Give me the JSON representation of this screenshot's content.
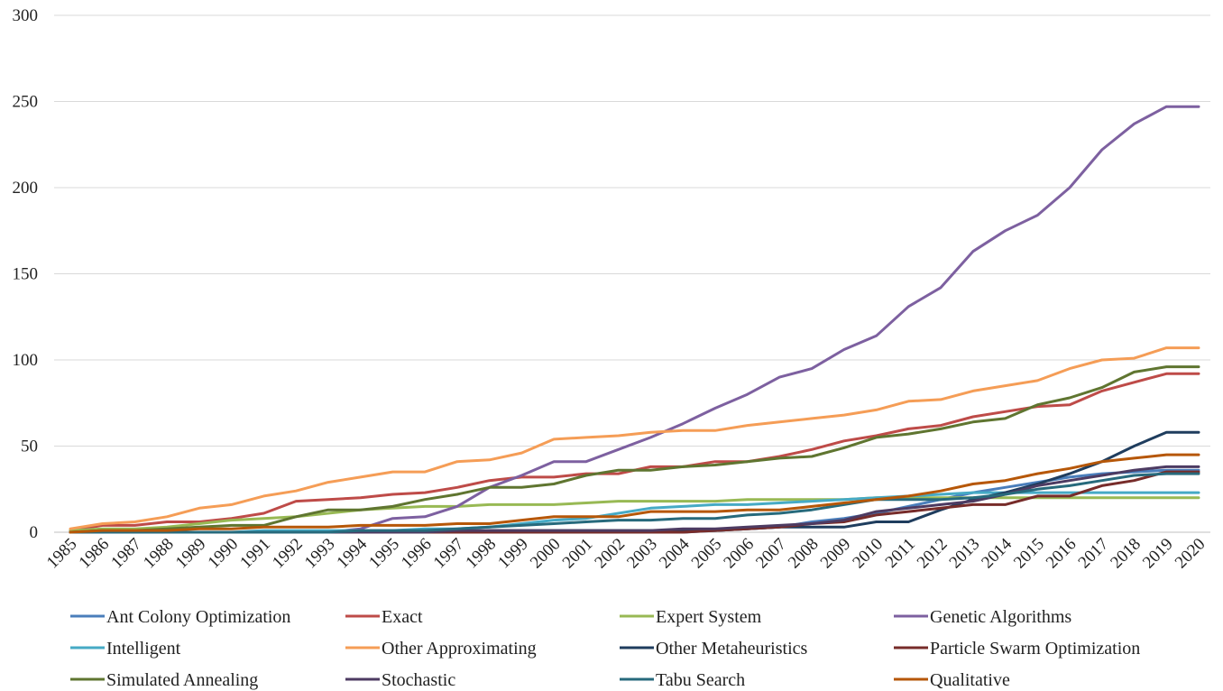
{
  "chart_data": {
    "type": "line",
    "title": "",
    "xlabel": "",
    "ylabel": "",
    "ylim": [
      0,
      300
    ],
    "yticks": [
      0,
      50,
      100,
      150,
      200,
      250,
      300
    ],
    "grid": true,
    "legend_position": "bottom",
    "x": [
      "1985",
      "1986",
      "1987",
      "1988",
      "1989",
      "1990",
      "1991",
      "1992",
      "1993",
      "1994",
      "1995",
      "1996",
      "1997",
      "1998",
      "1999",
      "2000",
      "2001",
      "2002",
      "2003",
      "2004",
      "2005",
      "2006",
      "2007",
      "2008",
      "2009",
      "2010",
      "2011",
      "2012",
      "2013",
      "2014",
      "2015",
      "2016",
      "2017",
      "2018",
      "2019",
      "2020"
    ],
    "series": [
      {
        "name": "Ant Colony Optimization",
        "color": "#4a7ebb",
        "values": [
          0,
          0,
          0,
          0,
          0,
          0,
          0,
          0,
          0,
          0,
          0,
          0,
          0,
          0,
          0,
          0,
          0,
          0,
          0,
          0,
          1,
          2,
          3,
          6,
          8,
          11,
          15,
          19,
          23,
          26,
          29,
          32,
          34,
          35,
          36,
          36
        ]
      },
      {
        "name": "Exact",
        "color": "#be4b48",
        "values": [
          1,
          4,
          4,
          6,
          6,
          8,
          11,
          18,
          19,
          20,
          22,
          23,
          26,
          30,
          32,
          32,
          34,
          34,
          38,
          38,
          41,
          41,
          44,
          48,
          53,
          56,
          60,
          62,
          67,
          70,
          73,
          74,
          82,
          87,
          92,
          92
        ]
      },
      {
        "name": "Expert System",
        "color": "#98b954",
        "values": [
          1,
          2,
          2,
          3,
          5,
          7,
          8,
          9,
          11,
          13,
          14,
          15,
          15,
          16,
          16,
          16,
          17,
          18,
          18,
          18,
          18,
          19,
          19,
          19,
          19,
          20,
          20,
          20,
          20,
          20,
          20,
          20,
          20,
          20,
          20,
          20
        ]
      },
      {
        "name": "Genetic Algorithms",
        "color": "#7d60a0",
        "values": [
          0,
          0,
          0,
          0,
          0,
          0,
          0,
          0,
          0,
          2,
          8,
          9,
          15,
          26,
          33,
          41,
          41,
          48,
          55,
          63,
          72,
          80,
          90,
          95,
          106,
          114,
          131,
          142,
          163,
          175,
          184,
          200,
          222,
          237,
          247,
          247
        ]
      },
      {
        "name": "Intelligent",
        "color": "#46aac5",
        "values": [
          0,
          0,
          0,
          0,
          0,
          0,
          1,
          1,
          1,
          1,
          1,
          2,
          2,
          3,
          5,
          7,
          8,
          11,
          14,
          15,
          16,
          16,
          17,
          18,
          19,
          20,
          21,
          22,
          23,
          23,
          23,
          23,
          23,
          23,
          23,
          23
        ]
      },
      {
        "name": "Other Approximating",
        "color": "#f59d56",
        "values": [
          2,
          5,
          6,
          9,
          14,
          16,
          21,
          24,
          29,
          32,
          35,
          35,
          41,
          42,
          46,
          54,
          55,
          56,
          58,
          59,
          59,
          62,
          64,
          66,
          68,
          71,
          76,
          77,
          82,
          85,
          88,
          95,
          100,
          101,
          107,
          107
        ]
      },
      {
        "name": "Other Metaheuristics",
        "color": "#1f3d5e",
        "values": [
          0,
          0,
          0,
          0,
          0,
          0,
          0,
          0,
          0,
          0,
          0,
          0,
          0,
          1,
          1,
          1,
          1,
          1,
          1,
          1,
          1,
          2,
          3,
          3,
          3,
          6,
          6,
          13,
          19,
          23,
          28,
          34,
          41,
          50,
          58,
          58
        ]
      },
      {
        "name": "Particle Swarm Optimization",
        "color": "#772c2a",
        "values": [
          0,
          0,
          0,
          0,
          0,
          0,
          0,
          0,
          0,
          0,
          0,
          0,
          0,
          0,
          0,
          0,
          0,
          0,
          0,
          0,
          1,
          2,
          3,
          5,
          6,
          10,
          12,
          14,
          16,
          16,
          21,
          21,
          27,
          30,
          35,
          35
        ]
      },
      {
        "name": "Simulated Annealing",
        "color": "#5f7530",
        "values": [
          0,
          1,
          1,
          2,
          3,
          4,
          4,
          9,
          13,
          13,
          15,
          19,
          22,
          26,
          26,
          28,
          33,
          36,
          36,
          38,
          39,
          41,
          43,
          44,
          49,
          55,
          57,
          60,
          64,
          66,
          74,
          78,
          84,
          93,
          96,
          96
        ]
      },
      {
        "name": "Stochastic",
        "color": "#4d3b62",
        "values": [
          0,
          0,
          0,
          0,
          0,
          0,
          0,
          0,
          0,
          0,
          0,
          0,
          1,
          1,
          1,
          1,
          1,
          1,
          1,
          2,
          2,
          3,
          4,
          5,
          7,
          12,
          14,
          16,
          18,
          22,
          27,
          30,
          33,
          36,
          38,
          38
        ]
      },
      {
        "name": "Tabu Search",
        "color": "#276a7c",
        "values": [
          0,
          0,
          0,
          0,
          0,
          0,
          0,
          0,
          0,
          1,
          1,
          1,
          2,
          3,
          4,
          5,
          6,
          7,
          7,
          8,
          8,
          10,
          11,
          13,
          16,
          19,
          19,
          19,
          20,
          22,
          25,
          27,
          30,
          33,
          34,
          34
        ]
      },
      {
        "name": "Qualitative",
        "color": "#b65708",
        "values": [
          0,
          1,
          1,
          1,
          2,
          2,
          3,
          3,
          3,
          4,
          4,
          4,
          5,
          5,
          7,
          9,
          9,
          9,
          12,
          12,
          12,
          13,
          13,
          15,
          17,
          19,
          21,
          24,
          28,
          30,
          34,
          37,
          41,
          43,
          45,
          45
        ]
      }
    ]
  }
}
